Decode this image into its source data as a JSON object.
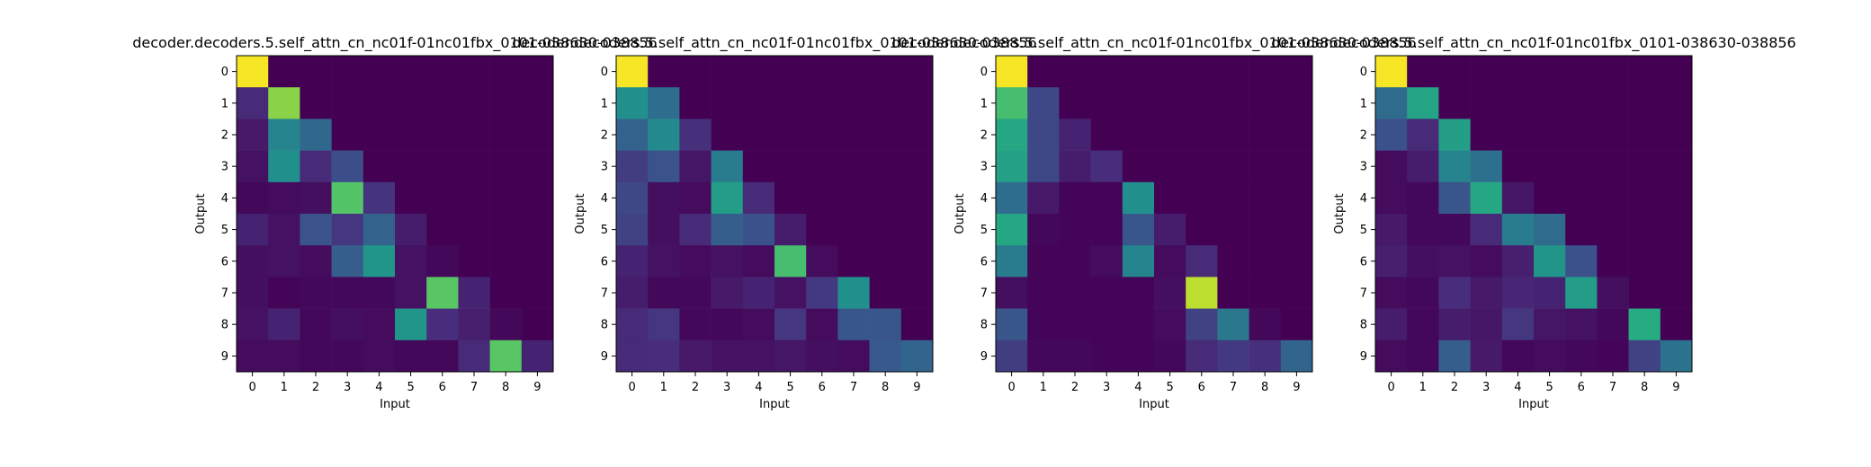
{
  "figure": {
    "colormap": "viridis",
    "vmin": 0,
    "vmax": 1
  },
  "chart_data": [
    {
      "type": "heatmap",
      "title": "decoder.decoders.5.self_attn_cn_nc01f-01nc01fbx_0101-038630-038856",
      "xlabel": "Input",
      "ylabel": "Output",
      "x_ticks": [
        "0",
        "1",
        "2",
        "3",
        "4",
        "5",
        "6",
        "7",
        "8",
        "9"
      ],
      "y_ticks": [
        "0",
        "1",
        "2",
        "3",
        "4",
        "5",
        "6",
        "7",
        "8",
        "9"
      ],
      "values": [
        [
          0.99,
          0,
          0,
          0,
          0,
          0,
          0,
          0,
          0,
          0
        ],
        [
          0.12,
          0.82,
          0,
          0,
          0,
          0,
          0,
          0,
          0,
          0
        ],
        [
          0.07,
          0.45,
          0.34,
          0,
          0,
          0,
          0,
          0,
          0,
          0
        ],
        [
          0.05,
          0.5,
          0.12,
          0.24,
          0,
          0,
          0,
          0,
          0,
          0
        ],
        [
          0.02,
          0.03,
          0.04,
          0.73,
          0.15,
          0,
          0,
          0,
          0,
          0
        ],
        [
          0.1,
          0.05,
          0.26,
          0.16,
          0.32,
          0.08,
          0,
          0,
          0,
          0
        ],
        [
          0.04,
          0.05,
          0.03,
          0.3,
          0.52,
          0.05,
          0.02,
          0,
          0,
          0
        ],
        [
          0.04,
          0.01,
          0.02,
          0.02,
          0.02,
          0.05,
          0.74,
          0.1,
          0,
          0
        ],
        [
          0.05,
          0.1,
          0.02,
          0.04,
          0.03,
          0.52,
          0.13,
          0.09,
          0.02,
          0
        ],
        [
          0.03,
          0.03,
          0.02,
          0.02,
          0.03,
          0.02,
          0.02,
          0.12,
          0.74,
          0.1
        ]
      ]
    },
    {
      "type": "heatmap",
      "title": "decoder.decoders.5.self_attn_cn_nc01f-01nc01fbx_0101-038630-038856",
      "xlabel": "Input",
      "ylabel": "Output",
      "x_ticks": [
        "0",
        "1",
        "2",
        "3",
        "4",
        "5",
        "6",
        "7",
        "8",
        "9"
      ],
      "y_ticks": [
        "0",
        "1",
        "2",
        "3",
        "4",
        "5",
        "6",
        "7",
        "8",
        "9"
      ],
      "values": [
        [
          0.99,
          0,
          0,
          0,
          0,
          0,
          0,
          0,
          0,
          0
        ],
        [
          0.5,
          0.36,
          0,
          0,
          0,
          0,
          0,
          0,
          0,
          0
        ],
        [
          0.32,
          0.47,
          0.14,
          0,
          0,
          0,
          0,
          0,
          0,
          0
        ],
        [
          0.18,
          0.26,
          0.06,
          0.42,
          0,
          0,
          0,
          0,
          0,
          0
        ],
        [
          0.22,
          0.04,
          0.03,
          0.55,
          0.12,
          0,
          0,
          0,
          0,
          0
        ],
        [
          0.2,
          0.04,
          0.12,
          0.3,
          0.25,
          0.08,
          0,
          0,
          0,
          0
        ],
        [
          0.1,
          0.05,
          0.03,
          0.05,
          0.03,
          0.7,
          0.03,
          0,
          0,
          0
        ],
        [
          0.08,
          0.02,
          0.02,
          0.07,
          0.1,
          0.05,
          0.17,
          0.5,
          0,
          0
        ],
        [
          0.12,
          0.16,
          0.02,
          0.02,
          0.03,
          0.16,
          0.03,
          0.27,
          0.27,
          0
        ],
        [
          0.12,
          0.13,
          0.07,
          0.05,
          0.05,
          0.06,
          0.04,
          0.03,
          0.28,
          0.33
        ]
      ]
    },
    {
      "type": "heatmap",
      "title": "decoder.decoders.5.self_attn_cn_nc01f-01nc01fbx_0101-038630-038856",
      "xlabel": "Input",
      "ylabel": "Output",
      "x_ticks": [
        "0",
        "1",
        "2",
        "3",
        "4",
        "5",
        "6",
        "7",
        "8",
        "9"
      ],
      "y_ticks": [
        "0",
        "1",
        "2",
        "3",
        "4",
        "5",
        "6",
        "7",
        "8",
        "9"
      ],
      "values": [
        [
          0.99,
          0,
          0,
          0,
          0,
          0,
          0,
          0,
          0,
          0
        ],
        [
          0.7,
          0.22,
          0,
          0,
          0,
          0,
          0,
          0,
          0,
          0
        ],
        [
          0.6,
          0.22,
          0.1,
          0,
          0,
          0,
          0,
          0,
          0,
          0
        ],
        [
          0.57,
          0.22,
          0.08,
          0.13,
          0,
          0,
          0,
          0,
          0,
          0
        ],
        [
          0.36,
          0.07,
          0.01,
          0.01,
          0.5,
          0,
          0,
          0,
          0,
          0
        ],
        [
          0.6,
          0.02,
          0.01,
          0.01,
          0.27,
          0.08,
          0,
          0,
          0,
          0
        ],
        [
          0.42,
          0.01,
          0.01,
          0.03,
          0.45,
          0.03,
          0.12,
          0,
          0,
          0
        ],
        [
          0.04,
          0.01,
          0.01,
          0.01,
          0.01,
          0.04,
          0.9,
          0,
          0,
          0
        ],
        [
          0.27,
          0.01,
          0.01,
          0.01,
          0.01,
          0.03,
          0.2,
          0.4,
          0.02,
          0
        ],
        [
          0.18,
          0.02,
          0.02,
          0.01,
          0.01,
          0.02,
          0.12,
          0.17,
          0.14,
          0.33
        ]
      ]
    },
    {
      "type": "heatmap",
      "title": "decoder.decoders.5.self_attn_cn_nc01f-01nc01fbx_0101-038630-038856",
      "xlabel": "Input",
      "ylabel": "Output",
      "x_ticks": [
        "0",
        "1",
        "2",
        "3",
        "4",
        "5",
        "6",
        "7",
        "8",
        "9"
      ],
      "y_ticks": [
        "0",
        "1",
        "2",
        "3",
        "4",
        "5",
        "6",
        "7",
        "8",
        "9"
      ],
      "values": [
        [
          0.99,
          0,
          0,
          0,
          0,
          0,
          0,
          0,
          0,
          0
        ],
        [
          0.35,
          0.58,
          0,
          0,
          0,
          0,
          0,
          0,
          0,
          0
        ],
        [
          0.25,
          0.12,
          0.56,
          0,
          0,
          0,
          0,
          0,
          0,
          0
        ],
        [
          0.03,
          0.08,
          0.45,
          0.37,
          0,
          0,
          0,
          0,
          0,
          0
        ],
        [
          0.03,
          0.02,
          0.27,
          0.6,
          0.06,
          0,
          0,
          0,
          0,
          0
        ],
        [
          0.07,
          0.02,
          0.02,
          0.12,
          0.42,
          0.35,
          0,
          0,
          0,
          0
        ],
        [
          0.09,
          0.04,
          0.05,
          0.03,
          0.09,
          0.52,
          0.25,
          0,
          0,
          0
        ],
        [
          0.03,
          0.02,
          0.13,
          0.07,
          0.11,
          0.1,
          0.55,
          0.04,
          0,
          0
        ],
        [
          0.08,
          0.02,
          0.08,
          0.06,
          0.16,
          0.06,
          0.05,
          0.02,
          0.62,
          0
        ],
        [
          0.03,
          0.02,
          0.3,
          0.07,
          0.02,
          0.03,
          0.02,
          0.01,
          0.2,
          0.38
        ]
      ]
    }
  ]
}
